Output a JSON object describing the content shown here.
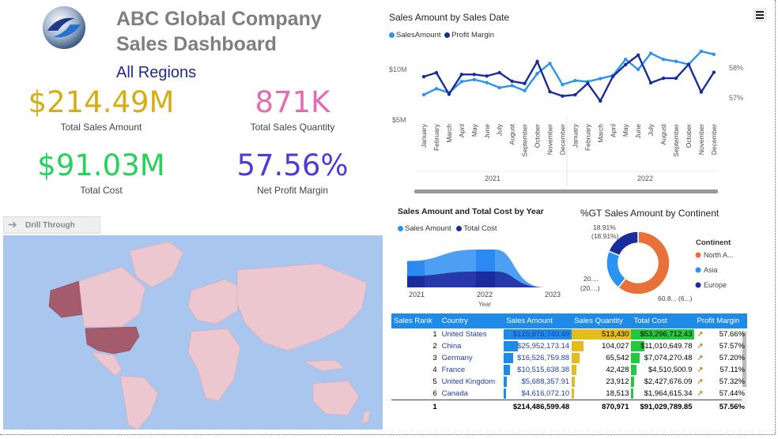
{
  "header": {
    "company": "ABC Global Company",
    "dashboard": "Sales Dashboard",
    "region": "All Regions"
  },
  "kpis": [
    {
      "value": "$214.49M",
      "label": "Total Sales Amount",
      "color": "#d6ad16"
    },
    {
      "value": "871K",
      "label": "Total Sales Quantity",
      "color": "#e56bb4"
    },
    {
      "value": "$91.03M",
      "label": "Total Cost",
      "color": "#25d25a"
    },
    {
      "value": "57.56%",
      "label": "Net Profit Margin",
      "color": "#4f3bd8"
    }
  ],
  "drill": {
    "label": "Drill Through",
    "icon": "arrow-right-icon"
  },
  "line_chart": {
    "title": "Sales Amount by Sales Date",
    "legend": [
      "SalesAmount",
      "Profit Margin"
    ],
    "y_left_ticks": [
      "$10M",
      "$5M"
    ],
    "y_right_ticks": [
      "58%",
      "57%"
    ],
    "months": [
      "January",
      "February",
      "March",
      "April",
      "May",
      "June",
      "July",
      "August",
      "September",
      "October",
      "November",
      "December"
    ],
    "years": [
      "2021",
      "2022"
    ]
  },
  "area_chart": {
    "title": "Sales Amount and Total Cost by Year",
    "legend": [
      "Sales Amount",
      "Total Cost"
    ],
    "x_ticks": [
      "2021",
      "2022",
      "2023"
    ],
    "xlabel": "Year"
  },
  "donut": {
    "title": "%GT Sales Amount by Continent",
    "legend_title": "Continent",
    "legend": [
      "North A...",
      "Asia",
      "Europe"
    ],
    "label_top": "18.91%",
    "label_top2": "(18.91%)",
    "label_left": "20....",
    "label_left2": "(20....)",
    "label_bottom": "60.8... (6...)"
  },
  "table": {
    "columns": [
      "Sales Rank",
      "Country",
      "Sales Amount",
      "Sales Quantity",
      "Total Cost",
      "Profit Margin"
    ],
    "rows": [
      {
        "rank": "1",
        "country": "United States",
        "amount": "$125,876,740.49",
        "qty": "513,430",
        "cost": "$53,296,712.43",
        "margin": "57.66%"
      },
      {
        "rank": "2",
        "country": "China",
        "amount": "$25,952,173.14",
        "qty": "104,027",
        "cost": "$11,010,649.78",
        "margin": "57.57%"
      },
      {
        "rank": "3",
        "country": "Germany",
        "amount": "$16,526,759.88",
        "qty": "65,542",
        "cost": "$7,074,270.48",
        "margin": "57.20%"
      },
      {
        "rank": "4",
        "country": "France",
        "amount": "$10,515,638.38",
        "qty": "42,428",
        "cost": "$4,510,500.9",
        "margin": "57.11%"
      },
      {
        "rank": "5",
        "country": "United Kingdom",
        "amount": "$5,688,357.91",
        "qty": "23,912",
        "cost": "$2,427,676.09",
        "margin": "57.32%"
      },
      {
        "rank": "6",
        "country": "Canada",
        "amount": "$4,616,072.10",
        "qty": "18,513",
        "cost": "$1,964,615.34",
        "margin": "57.44%"
      }
    ],
    "total": {
      "rank": "1",
      "amount": "$214,486,599.48",
      "qty": "870,971",
      "cost": "$91,029,789.85",
      "margin": "57.56%"
    }
  },
  "chart_data": [
    {
      "type": "line",
      "title": "Sales Amount by Sales Date",
      "x": [
        "2021-01",
        "2021-02",
        "2021-03",
        "2021-04",
        "2021-05",
        "2021-06",
        "2021-07",
        "2021-08",
        "2021-09",
        "2021-10",
        "2021-11",
        "2021-12",
        "2022-01",
        "2022-02",
        "2022-03",
        "2022-04",
        "2022-05",
        "2022-06",
        "2022-07",
        "2022-08",
        "2022-09",
        "2022-10",
        "2022-11",
        "2022-12"
      ],
      "series": [
        {
          "name": "SalesAmount",
          "axis": "left",
          "values": [
            7.5,
            8.1,
            7.7,
            8.8,
            9.0,
            8.7,
            8.2,
            8.4,
            7.9,
            9.6,
            10.6,
            8.5,
            8.9,
            8.8,
            9.1,
            9.4,
            11.0,
            10.0,
            11.6,
            11.0,
            10.8,
            10.5,
            11.8,
            11.5
          ]
        },
        {
          "name": "Profit Margin",
          "axis": "right",
          "values": [
            57.69,
            57.82,
            57.12,
            57.76,
            57.76,
            57.71,
            57.82,
            57.54,
            57.47,
            58.18,
            57.2,
            57.06,
            57.1,
            57.47,
            56.9,
            57.7,
            58.08,
            58.39,
            57.49,
            57.64,
            57.64,
            58.09,
            57.19,
            57.83
          ]
        }
      ],
      "legend": "top-left"
    },
    {
      "type": "area",
      "title": "Sales Amount and Total Cost by Year",
      "categories": [
        "2021",
        "2022",
        "2023"
      ],
      "series": [
        {
          "name": "Sales Amount",
          "values": [
            88,
            126,
            0
          ]
        },
        {
          "name": "Total Cost",
          "values": [
            38,
            53,
            0
          ]
        }
      ],
      "xlabel": "Year"
    },
    {
      "type": "pie",
      "title": "%GT Sales Amount by Continent",
      "categories": [
        "North A...",
        "Asia",
        "Europe"
      ],
      "values": [
        60.8,
        20.3,
        18.91
      ],
      "colors": [
        "#e8713a",
        "#2a93f3",
        "#1a2c9c"
      ]
    }
  ]
}
